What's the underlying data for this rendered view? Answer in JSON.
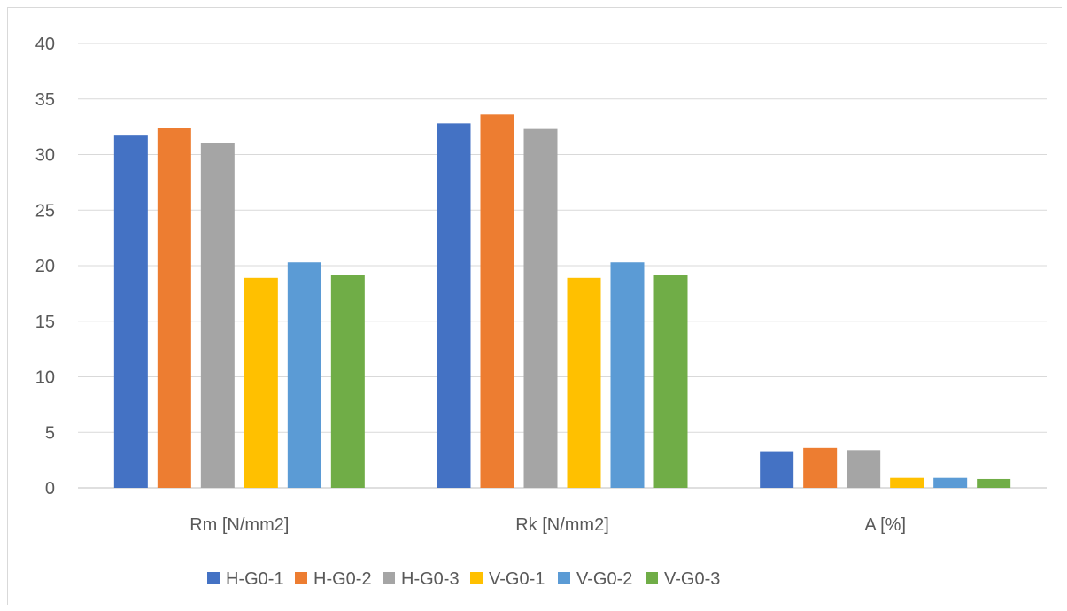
{
  "chart_data": {
    "type": "bar",
    "title": "",
    "xlabel": "",
    "ylabel": "",
    "ylim": [
      0,
      40
    ],
    "yticks": [
      0,
      5,
      10,
      15,
      20,
      25,
      30,
      35,
      40
    ],
    "grid": true,
    "legend_position": "bottom",
    "categories": [
      "Rm [N/mm2]",
      "Rk [N/mm2]",
      "A [%]"
    ],
    "series": [
      {
        "name": "H-G0-1",
        "color": "#4472c4",
        "values": [
          31.7,
          32.8,
          3.3
        ]
      },
      {
        "name": "H-G0-2",
        "color": "#ed7d31",
        "values": [
          32.4,
          33.6,
          3.6
        ]
      },
      {
        "name": "H-G0-3",
        "color": "#a5a5a5",
        "values": [
          31.0,
          32.3,
          3.4
        ]
      },
      {
        "name": "V-G0-1",
        "color": "#ffc000",
        "values": [
          18.9,
          18.9,
          0.9
        ]
      },
      {
        "name": "V-G0-2",
        "color": "#5b9bd5",
        "values": [
          20.3,
          20.3,
          0.9
        ]
      },
      {
        "name": "V-G0-3",
        "color": "#70ad47",
        "values": [
          19.2,
          19.2,
          0.8
        ]
      }
    ]
  }
}
